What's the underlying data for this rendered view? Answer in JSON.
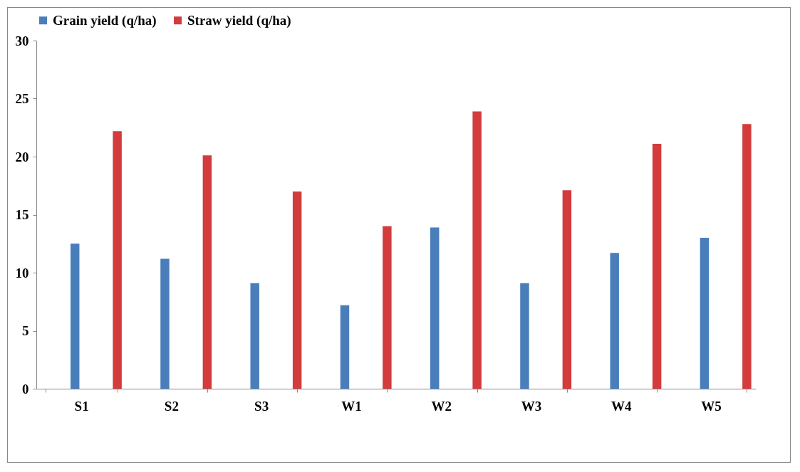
{
  "chart_data": {
    "type": "bar",
    "categories": [
      "S1",
      "S2",
      "S3",
      "W1",
      "W2",
      "W3",
      "W4",
      "W5"
    ],
    "series": [
      {
        "name": "Grain yield (q/ha)",
        "color": "#4a7ebb",
        "values": [
          12.5,
          11.2,
          9.1,
          7.2,
          13.9,
          9.1,
          11.7,
          13.0
        ]
      },
      {
        "name": "Straw yield (q/ha)",
        "color": "#d23c3c",
        "values": [
          22.2,
          20.1,
          17.0,
          14.0,
          23.9,
          17.1,
          21.1,
          22.8
        ]
      }
    ],
    "ylim": [
      0,
      30
    ],
    "yticks": [
      0,
      5,
      10,
      15,
      20,
      25,
      30
    ],
    "grid": false,
    "legend": "top"
  }
}
